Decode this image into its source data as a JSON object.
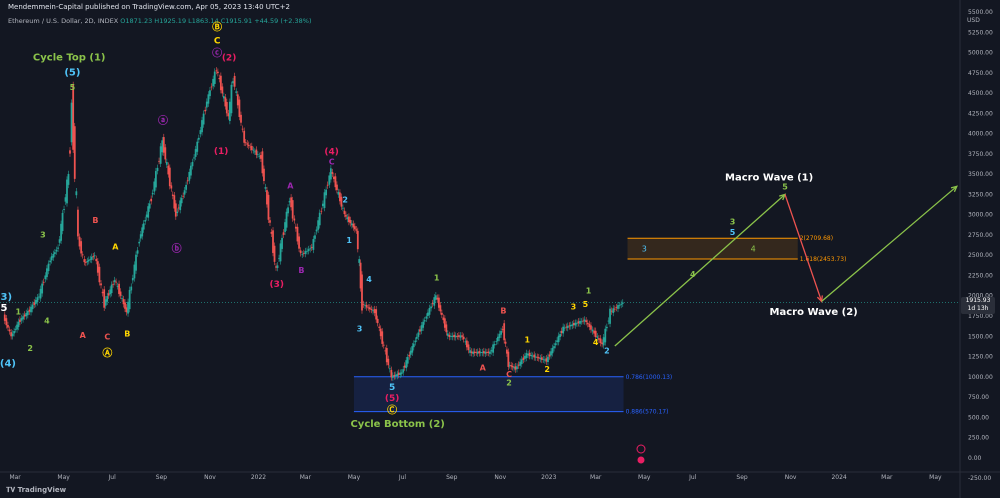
{
  "header": {
    "published": "Mendemmein-Capital published on TradingView.com, Apr 05, 2023 13:40 UTC+2"
  },
  "symbol": {
    "name": "Ethereum / U.S. Dollar, 2D, INDEX",
    "ohlc": "O1871.23 H1925.19 L1863.14 C1915.91 +44.59 (+2.38%)"
  },
  "price_axis_title": "USD",
  "last_price": {
    "value": "1915.93",
    "countdown": "1d 13h"
  },
  "logo_text": "TradingView",
  "chart_data": {
    "type": "line",
    "series": [
      {
        "values": [
          {
            "x": "2021-02-15",
            "y": 1750
          },
          {
            "x": "2021-02-25",
            "y": 1500
          },
          {
            "x": "2021-03-08",
            "y": 1700
          },
          {
            "x": "2021-03-20",
            "y": 1820
          },
          {
            "x": "2021-04-01",
            "y": 2000
          },
          {
            "x": "2021-04-15",
            "y": 2450
          },
          {
            "x": "2021-04-25",
            "y": 2600
          },
          {
            "x": "2021-05-08",
            "y": 3500
          },
          {
            "x": "2021-05-12",
            "y": 4360
          },
          {
            "x": "2021-05-20",
            "y": 2700
          },
          {
            "x": "2021-05-28",
            "y": 2400
          },
          {
            "x": "2021-06-10",
            "y": 2500
          },
          {
            "x": "2021-06-22",
            "y": 1900
          },
          {
            "x": "2021-07-05",
            "y": 2200
          },
          {
            "x": "2021-07-20",
            "y": 1800
          },
          {
            "x": "2021-08-05",
            "y": 2700
          },
          {
            "x": "2021-08-20",
            "y": 3200
          },
          {
            "x": "2021-09-03",
            "y": 3900
          },
          {
            "x": "2021-09-20",
            "y": 3000
          },
          {
            "x": "2021-10-01",
            "y": 3300
          },
          {
            "x": "2021-10-15",
            "y": 3800
          },
          {
            "x": "2021-10-29",
            "y": 4400
          },
          {
            "x": "2021-11-10",
            "y": 4800
          },
          {
            "x": "2021-11-25",
            "y": 4200
          },
          {
            "x": "2021-12-01",
            "y": 4700
          },
          {
            "x": "2021-12-15",
            "y": 3900
          },
          {
            "x": "2022-01-05",
            "y": 3700
          },
          {
            "x": "2022-01-24",
            "y": 2300
          },
          {
            "x": "2022-02-10",
            "y": 3200
          },
          {
            "x": "2022-02-24",
            "y": 2500
          },
          {
            "x": "2022-03-10",
            "y": 2600
          },
          {
            "x": "2022-04-03",
            "y": 3550
          },
          {
            "x": "2022-04-20",
            "y": 3000
          },
          {
            "x": "2022-05-05",
            "y": 2800
          },
          {
            "x": "2022-05-12",
            "y": 1900
          },
          {
            "x": "2022-05-28",
            "y": 1800
          },
          {
            "x": "2022-06-18",
            "y": 1000
          },
          {
            "x": "2022-07-01",
            "y": 1050
          },
          {
            "x": "2022-07-20",
            "y": 1500
          },
          {
            "x": "2022-08-13",
            "y": 2000
          },
          {
            "x": "2022-08-28",
            "y": 1500
          },
          {
            "x": "2022-09-15",
            "y": 1500
          },
          {
            "x": "2022-09-25",
            "y": 1300
          },
          {
            "x": "2022-10-20",
            "y": 1300
          },
          {
            "x": "2022-11-05",
            "y": 1600
          },
          {
            "x": "2022-11-12",
            "y": 1150
          },
          {
            "x": "2022-11-21",
            "y": 1100
          },
          {
            "x": "2022-12-05",
            "y": 1280
          },
          {
            "x": "2022-12-30",
            "y": 1200
          },
          {
            "x": "2023-01-20",
            "y": 1600
          },
          {
            "x": "2023-02-16",
            "y": 1700
          },
          {
            "x": "2023-03-10",
            "y": 1400
          },
          {
            "x": "2023-03-20",
            "y": 1800
          },
          {
            "x": "2023-04-05",
            "y": 1916
          }
        ]
      }
    ],
    "xlim": [
      "2021-02-10",
      "2024-06-01"
    ],
    "ylim": [
      -150,
      5550
    ],
    "y_ticks": [
      "5500.00",
      "5250.00",
      "5000.00",
      "4750.00",
      "4500.00",
      "4250.00",
      "4000.00",
      "3750.00",
      "3500.00",
      "3250.00",
      "3000.00",
      "2750.00",
      "2500.00",
      "2250.00",
      "2000.00",
      "1750.00",
      "1500.00",
      "1250.00",
      "1000.00",
      "750.00",
      "500.00",
      "250.00",
      "0.00",
      "-250.00"
    ],
    "x_ticks": [
      {
        "label": "Mar",
        "date": "2021-03-01"
      },
      {
        "label": "May",
        "date": "2021-05-01"
      },
      {
        "label": "Jul",
        "date": "2021-07-01"
      },
      {
        "label": "Sep",
        "date": "2021-09-01"
      },
      {
        "label": "Nov",
        "date": "2021-11-01"
      },
      {
        "label": "2022",
        "date": "2022-01-01"
      },
      {
        "label": "Mar",
        "date": "2022-03-01"
      },
      {
        "label": "May",
        "date": "2022-05-01"
      },
      {
        "label": "Jul",
        "date": "2022-07-01"
      },
      {
        "label": "Sep",
        "date": "2022-09-01"
      },
      {
        "label": "Nov",
        "date": "2022-11-01"
      },
      {
        "label": "2023",
        "date": "2023-01-01"
      },
      {
        "label": "Mar",
        "date": "2023-03-01"
      },
      {
        "label": "May",
        "date": "2023-05-01"
      },
      {
        "label": "Jul",
        "date": "2023-07-01"
      },
      {
        "label": "Sep",
        "date": "2023-09-01"
      },
      {
        "label": "Nov",
        "date": "2023-11-01"
      },
      {
        "label": "2024",
        "date": "2024-01-01"
      },
      {
        "label": "Mar",
        "date": "2024-03-01"
      },
      {
        "label": "May",
        "date": "2024-05-01"
      }
    ],
    "zones": [
      {
        "x0": "2023-04-10",
        "x1": "2023-11-10",
        "y0": 2453.73,
        "y1": 2709.68,
        "color": "#ff9800",
        "labels": [
          "1.618(2453.73)",
          "2(2709.68)"
        ],
        "inner": [
          {
            "t": "3",
            "c": "#4fc3f7",
            "x": "2023-05-01"
          },
          {
            "t": "4",
            "c": "#8bc34a",
            "x": "2023-09-15"
          }
        ]
      },
      {
        "x0": "2022-05-01",
        "x1": "2023-04-05",
        "y0": 570.17,
        "y1": 1000.13,
        "color": "#2962ff",
        "labels": [
          "0.786(1000.13)",
          "0.886(570.17)"
        ]
      }
    ],
    "projections": [
      {
        "points": [
          {
            "x": "2023-03-25",
            "y": 1380
          },
          {
            "x": "2023-10-25",
            "y": 3250
          }
        ],
        "color": "#8bc34a"
      },
      {
        "points": [
          {
            "x": "2023-10-25",
            "y": 3250
          },
          {
            "x": "2023-12-10",
            "y": 1930
          }
        ],
        "color": "#ef5350"
      },
      {
        "points": [
          {
            "x": "2023-12-10",
            "y": 1930
          },
          {
            "x": "2024-05-28",
            "y": 3350
          }
        ],
        "color": "#8bc34a"
      }
    ],
    "annotations": [
      {
        "t": "(3)",
        "x": "2021-02-15",
        "y": 1950,
        "c": "#4fc3f7",
        "s": 10
      },
      {
        "t": "5",
        "x": "2021-02-15",
        "y": 1810,
        "c": "#ffffff",
        "s": 10
      },
      {
        "t": "1",
        "x": "2021-03-05",
        "y": 1770,
        "c": "#8bc34a",
        "s": 8
      },
      {
        "t": "(4)",
        "x": "2021-02-20",
        "y": 1130,
        "c": "#4fc3f7",
        "s": 10
      },
      {
        "t": "2",
        "x": "2021-03-20",
        "y": 1320,
        "c": "#8bc34a",
        "s": 8
      },
      {
        "t": "3",
        "x": "2021-04-05",
        "y": 2720,
        "c": "#8bc34a",
        "s": 8
      },
      {
        "t": "4",
        "x": "2021-04-10",
        "y": 1660,
        "c": "#8bc34a",
        "s": 8
      },
      {
        "t": "Cycle Top (1)",
        "x": "2021-05-08",
        "y": 4900,
        "c": "#8bc34a",
        "s": 10
      },
      {
        "t": "(5)",
        "x": "2021-05-12",
        "y": 4720,
        "c": "#4fc3f7",
        "s": 10
      },
      {
        "t": "5",
        "x": "2021-05-12",
        "y": 4540,
        "c": "#8bc34a",
        "s": 8
      },
      {
        "t": "A",
        "x": "2021-05-25",
        "y": 1480,
        "c": "#ef5350",
        "s": 8
      },
      {
        "t": "B",
        "x": "2021-06-10",
        "y": 2900,
        "c": "#ef5350",
        "s": 8
      },
      {
        "t": "C",
        "x": "2021-06-25",
        "y": 1460,
        "c": "#ef5350",
        "s": 8
      },
      {
        "t": "A",
        "x": "2021-07-05",
        "y": 2570,
        "c": "#ffd600",
        "s": 8
      },
      {
        "t": "B",
        "x": "2021-07-20",
        "y": 1500,
        "c": "#ffd600",
        "s": 8
      },
      {
        "t": "Ⓐ",
        "x": "2021-06-25",
        "y": 1250,
        "c": "#ffd600",
        "s": 10
      },
      {
        "t": "ⓐ",
        "x": "2021-09-03",
        "y": 4120,
        "c": "#9c27b0",
        "s": 10
      },
      {
        "t": "ⓑ",
        "x": "2021-09-20",
        "y": 2540,
        "c": "#9c27b0",
        "s": 10
      },
      {
        "t": "Ⓑ",
        "x": "2021-11-10",
        "y": 5270,
        "c": "#ffd600",
        "s": 10
      },
      {
        "t": "C",
        "x": "2021-11-10",
        "y": 5110,
        "c": "#ffd600",
        "s": 9
      },
      {
        "t": "ⓒ",
        "x": "2021-11-10",
        "y": 4950,
        "c": "#9c27b0",
        "s": 10
      },
      {
        "t": "(2)",
        "x": "2021-11-25",
        "y": 4900,
        "c": "#e91e63",
        "s": 9
      },
      {
        "t": "(1)",
        "x": "2021-11-15",
        "y": 3750,
        "c": "#e91e63",
        "s": 9
      },
      {
        "t": "A",
        "x": "2022-02-10",
        "y": 3320,
        "c": "#9c27b0",
        "s": 8
      },
      {
        "t": "(3)",
        "x": "2022-01-24",
        "y": 2110,
        "c": "#e91e63",
        "s": 9
      },
      {
        "t": "B",
        "x": "2022-02-24",
        "y": 2280,
        "c": "#9c27b0",
        "s": 8
      },
      {
        "t": "(4)",
        "x": "2022-04-03",
        "y": 3740,
        "c": "#e91e63",
        "s": 9
      },
      {
        "t": "C",
        "x": "2022-04-03",
        "y": 3620,
        "c": "#9c27b0",
        "s": 8
      },
      {
        "t": "2",
        "x": "2022-04-20",
        "y": 3150,
        "c": "#4fc3f7",
        "s": 8
      },
      {
        "t": "1",
        "x": "2022-04-25",
        "y": 2650,
        "c": "#4fc3f7",
        "s": 8
      },
      {
        "t": "4",
        "x": "2022-05-20",
        "y": 2170,
        "c": "#4fc3f7",
        "s": 8
      },
      {
        "t": "3",
        "x": "2022-05-08",
        "y": 1560,
        "c": "#4fc3f7",
        "s": 8
      },
      {
        "t": "5",
        "x": "2022-06-18",
        "y": 840,
        "c": "#4fc3f7",
        "s": 9
      },
      {
        "t": "(5)",
        "x": "2022-06-18",
        "y": 700,
        "c": "#e91e63",
        "s": 9
      },
      {
        "t": "Ⓒ",
        "x": "2022-06-18",
        "y": 550,
        "c": "#ffd600",
        "s": 10
      },
      {
        "t": "Cycle Bottom (2)",
        "x": "2022-06-25",
        "y": 380,
        "c": "#8bc34a",
        "s": 10
      },
      {
        "t": "1",
        "x": "2022-08-13",
        "y": 2190,
        "c": "#8bc34a",
        "s": 8
      },
      {
        "t": "A",
        "x": "2022-10-10",
        "y": 1080,
        "c": "#ef5350",
        "s": 8
      },
      {
        "t": "B",
        "x": "2022-11-05",
        "y": 1780,
        "c": "#ef5350",
        "s": 8
      },
      {
        "t": "C",
        "x": "2022-11-12",
        "y": 1000,
        "c": "#ef5350",
        "s": 8
      },
      {
        "t": "2",
        "x": "2022-11-12",
        "y": 890,
        "c": "#8bc34a",
        "s": 8
      },
      {
        "t": "1",
        "x": "2022-12-05",
        "y": 1420,
        "c": "#ffd600",
        "s": 8
      },
      {
        "t": "2",
        "x": "2022-12-30",
        "y": 1060,
        "c": "#ffd600",
        "s": 8
      },
      {
        "t": "3",
        "x": "2023-02-01",
        "y": 1830,
        "c": "#ffd600",
        "s": 8
      },
      {
        "t": "5",
        "x": "2023-02-16",
        "y": 1860,
        "c": "#ffd600",
        "s": 8
      },
      {
        "t": "1",
        "x": "2023-02-20",
        "y": 2030,
        "c": "#8bc34a",
        "s": 8
      },
      {
        "t": "4",
        "x": "2023-03-01",
        "y": 1390,
        "c": "#ffd600",
        "s": 8
      },
      {
        "t": "2",
        "x": "2023-03-15",
        "y": 1290,
        "c": "#4fc3f7",
        "s": 8
      },
      {
        "t": "4",
        "x": "2023-07-01",
        "y": 2230,
        "c": "#8bc34a",
        "s": 8
      },
      {
        "t": "3",
        "x": "2023-08-20",
        "y": 2880,
        "c": "#8bc34a",
        "s": 8
      },
      {
        "t": "5",
        "x": "2023-08-20",
        "y": 2750,
        "c": "#4fc3f7",
        "s": 8
      },
      {
        "t": "5",
        "x": "2023-10-25",
        "y": 3310,
        "c": "#8bc34a",
        "s": 8
      },
      {
        "t": "Macro Wave (1)",
        "x": "2023-10-05",
        "y": 3420,
        "c": "#ffffff",
        "s": 10
      },
      {
        "t": "Macro Wave (2)",
        "x": "2023-11-30",
        "y": 1760,
        "c": "#ffffff",
        "s": 10
      }
    ]
  }
}
